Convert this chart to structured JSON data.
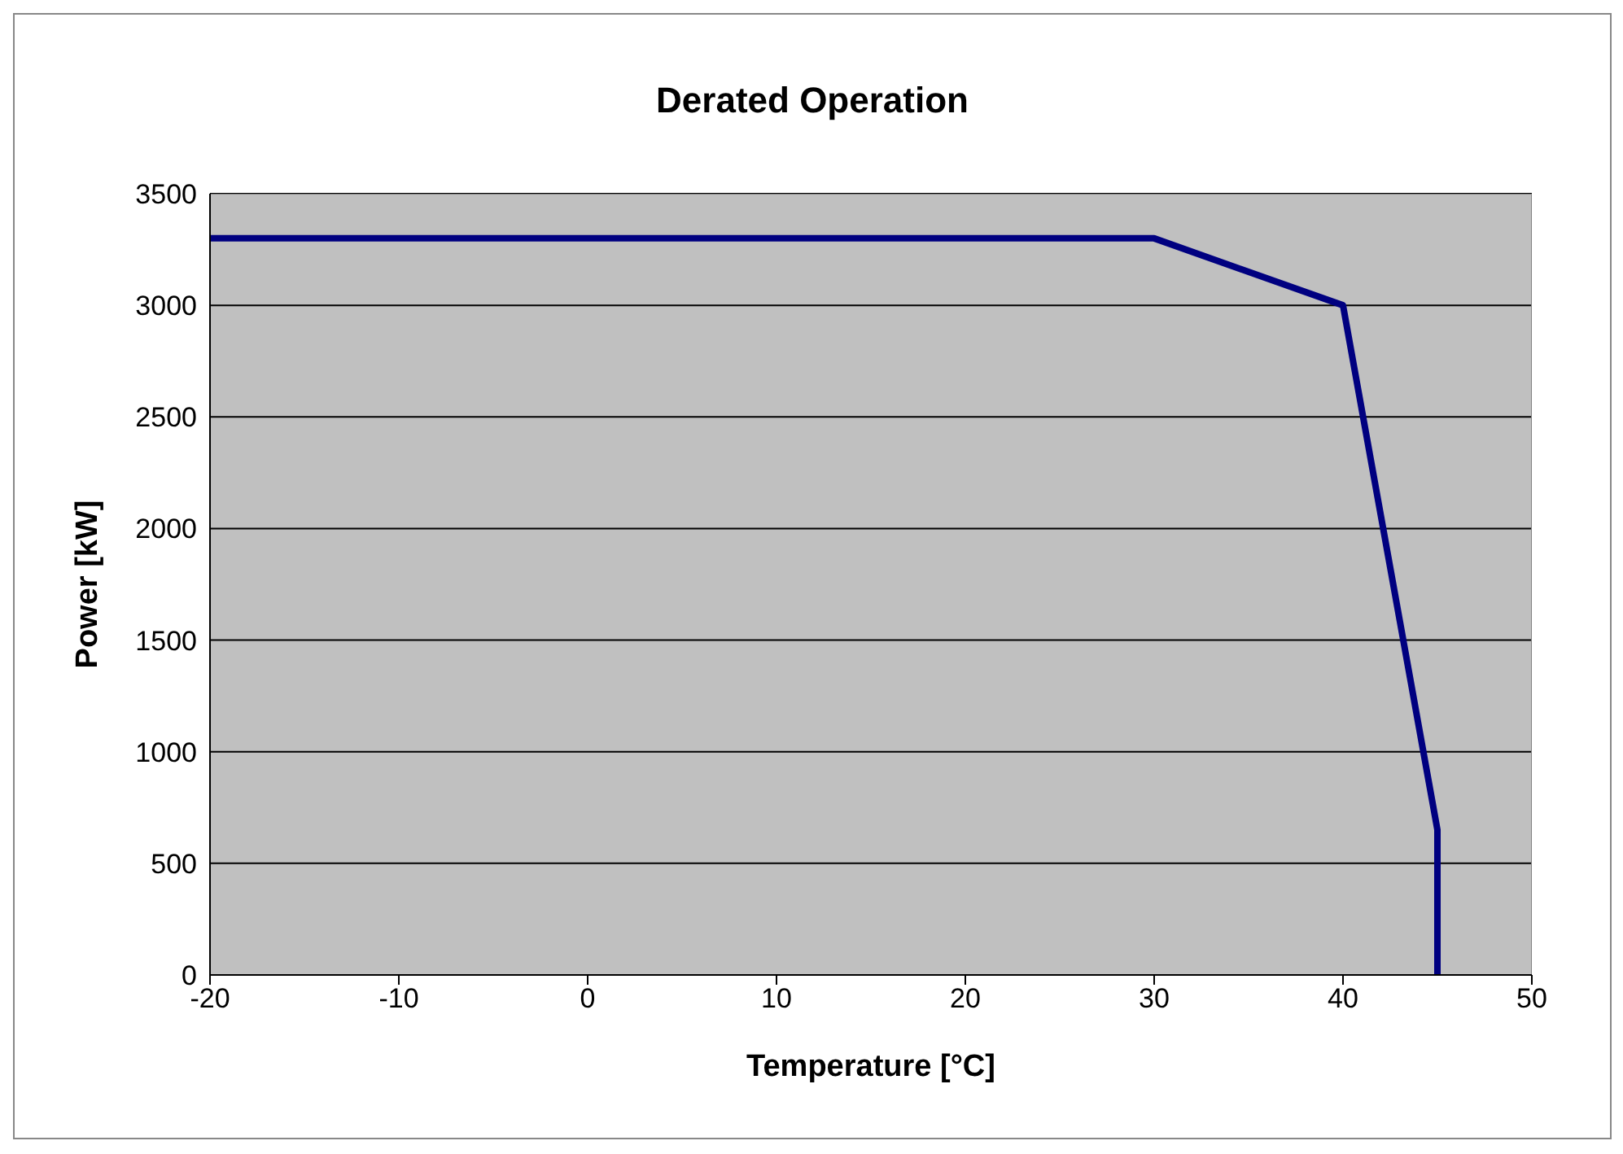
{
  "chart_data": {
    "type": "line",
    "title": "Derated Operation",
    "xlabel": "Temperature [°C]",
    "ylabel": "Power [kW]",
    "x": [
      -20,
      30,
      40,
      45,
      45
    ],
    "series": [
      {
        "color": "#000080",
        "values": [
          3300,
          3300,
          3000,
          650,
          0
        ]
      }
    ],
    "xlim": [
      -20,
      50
    ],
    "xticks": [
      -20,
      -10,
      0,
      10,
      20,
      30,
      40,
      50
    ],
    "ylim": [
      0,
      3500
    ],
    "yticks": [
      0,
      500,
      1000,
      1500,
      2000,
      2500,
      3000,
      3500
    ],
    "grid": "y",
    "marker": "none",
    "line_style": "solid",
    "legend": false
  }
}
